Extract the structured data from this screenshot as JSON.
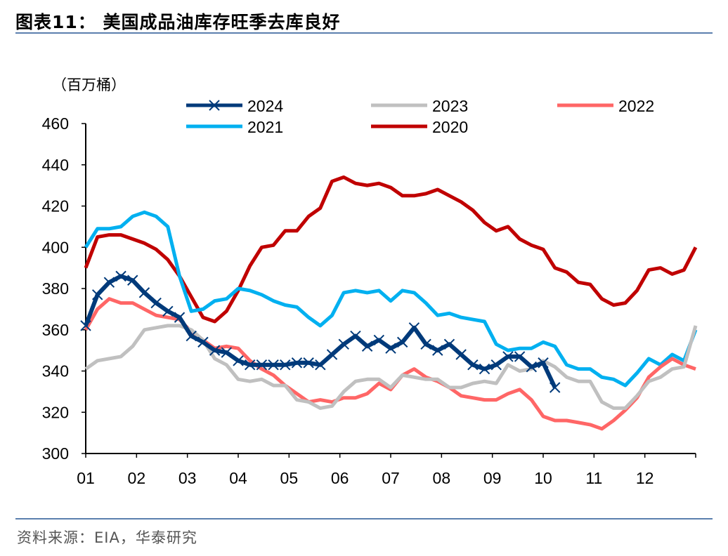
{
  "title": "图表11：  美国成品油库存旺季去库良好",
  "source": "资料来源：EIA，华泰研究",
  "chart_data": {
    "type": "line",
    "title": "美国成品油库存旺季去库良好",
    "ylabel": "（百万桶）",
    "xlabel": "",
    "ylim": [
      300,
      460
    ],
    "yticks": [
      300,
      320,
      340,
      360,
      380,
      400,
      420,
      440,
      460
    ],
    "xtick_labels": [
      "01",
      "02",
      "03",
      "04",
      "05",
      "06",
      "07",
      "08",
      "09",
      "10",
      "11",
      "12"
    ],
    "weeks_per_year": 52,
    "legend_position": "top",
    "series": [
      {
        "name": "2024",
        "color": "#003a7a",
        "marker": "x",
        "values": [
          362,
          377,
          383,
          386,
          384,
          378,
          373,
          369,
          366,
          357,
          354,
          350,
          349,
          345,
          343,
          343,
          343,
          343,
          344,
          344,
          343,
          348,
          353,
          357,
          352,
          355,
          351,
          354,
          361,
          353,
          350,
          353,
          348,
          343,
          341,
          343,
          347,
          347,
          342,
          344,
          332
        ]
      },
      {
        "name": "2023",
        "color": "#c0c0c0",
        "values": [
          341,
          345,
          346,
          347,
          352,
          360,
          361,
          362,
          362,
          360,
          355,
          346,
          343,
          336,
          335,
          336,
          333,
          333,
          326,
          325,
          322,
          323,
          330,
          335,
          336,
          336,
          332,
          338,
          337,
          336,
          336,
          332,
          332,
          334,
          335,
          334,
          343,
          340,
          341,
          345,
          342,
          337,
          335,
          335,
          325,
          322,
          322,
          328,
          335,
          337,
          341,
          342,
          362
        ]
      },
      {
        "name": "2022",
        "color": "#ff6666",
        "values": [
          360,
          370,
          375,
          373,
          373,
          370,
          367,
          366,
          365,
          359,
          355,
          351,
          352,
          351,
          345,
          341,
          338,
          333,
          329,
          325,
          326,
          325,
          327,
          327,
          329,
          334,
          331,
          338,
          341,
          337,
          335,
          332,
          328,
          327,
          326,
          326,
          329,
          331,
          326,
          318,
          316,
          316,
          315,
          314,
          312,
          316,
          321,
          327,
          337,
          342,
          346,
          343,
          341
        ]
      },
      {
        "name": "2021",
        "color": "#00b0f0",
        "values": [
          400,
          409,
          409,
          410,
          415,
          417,
          415,
          410,
          386,
          369,
          370,
          374,
          375,
          380,
          379,
          377,
          374,
          372,
          371,
          366,
          362,
          367,
          378,
          379,
          378,
          379,
          374,
          379,
          378,
          373,
          367,
          368,
          366,
          365,
          364,
          353,
          350,
          351,
          351,
          354,
          352,
          343,
          341,
          341,
          337,
          336,
          333,
          339,
          346,
          343,
          348,
          345,
          360
        ]
      },
      {
        "name": "2020",
        "color": "#c00000",
        "values": [
          390,
          405,
          406,
          406,
          404,
          402,
          399,
          394,
          386,
          376,
          366,
          364,
          369,
          379,
          391,
          400,
          401,
          408,
          408,
          415,
          419,
          432,
          434,
          431,
          430,
          431,
          429,
          425,
          425,
          426,
          428,
          425,
          422,
          418,
          412,
          408,
          410,
          404,
          401,
          399,
          390,
          388,
          383,
          382,
          375,
          372,
          373,
          379,
          389,
          390,
          387,
          389,
          400
        ]
      }
    ]
  }
}
